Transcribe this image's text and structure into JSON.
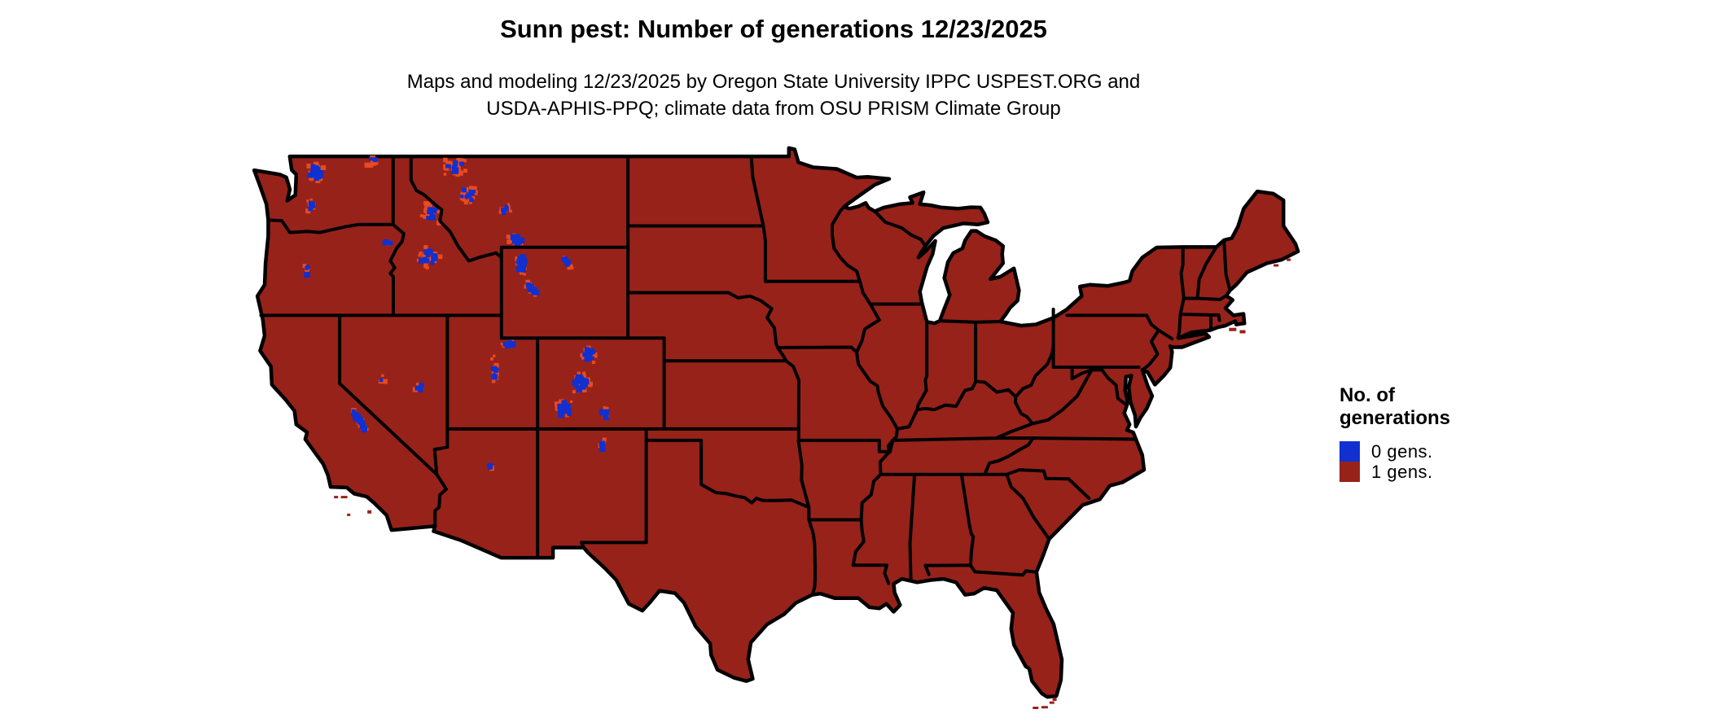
{
  "header": {
    "title": "Sunn pest: Number of generations 12/23/2025",
    "subtitle_line1": "Maps and modeling 12/23/2025 by Oregon State University IPPC USPEST.ORG and",
    "subtitle_line2": "USDA-APHIS-PPQ; climate data from OSU PRISM Climate Group"
  },
  "legend": {
    "title_line1": "No. of",
    "title_line2": "generations",
    "items": [
      {
        "label": "0 gens.",
        "color": "#1130cf"
      },
      {
        "label": "1 gens.",
        "color": "#97221a"
      }
    ]
  },
  "map": {
    "region": "Contiguous United States",
    "colors": {
      "one_generation_fill": "#97221a",
      "zero_generation_fill": "#1130cf",
      "transition_speckle": "#ea4a1f",
      "state_border": "#000000",
      "background": "#ffffff"
    }
  },
  "chart_data": {
    "type": "choropleth_map",
    "region": "Contiguous United States (state outlines)",
    "title": "Sunn pest: Number of generations 12/23/2025",
    "legend_title": "No. of generations",
    "legend_position": "right",
    "classes": [
      {
        "label": "0 gens.",
        "color": "#1130cf",
        "extent": "small high-elevation pockets: WA Cascades, northern Rockies (MT/ID), Yellowstone, Wind River and Bighorn ranges (WY), Uinta and Wasatch ranges (UT), Colorado Rockies, Sierra Nevada (CA)"
      },
      {
        "label": "1 gens.",
        "color": "#97221a",
        "extent": "nearly the entire contiguous United States"
      }
    ]
  }
}
